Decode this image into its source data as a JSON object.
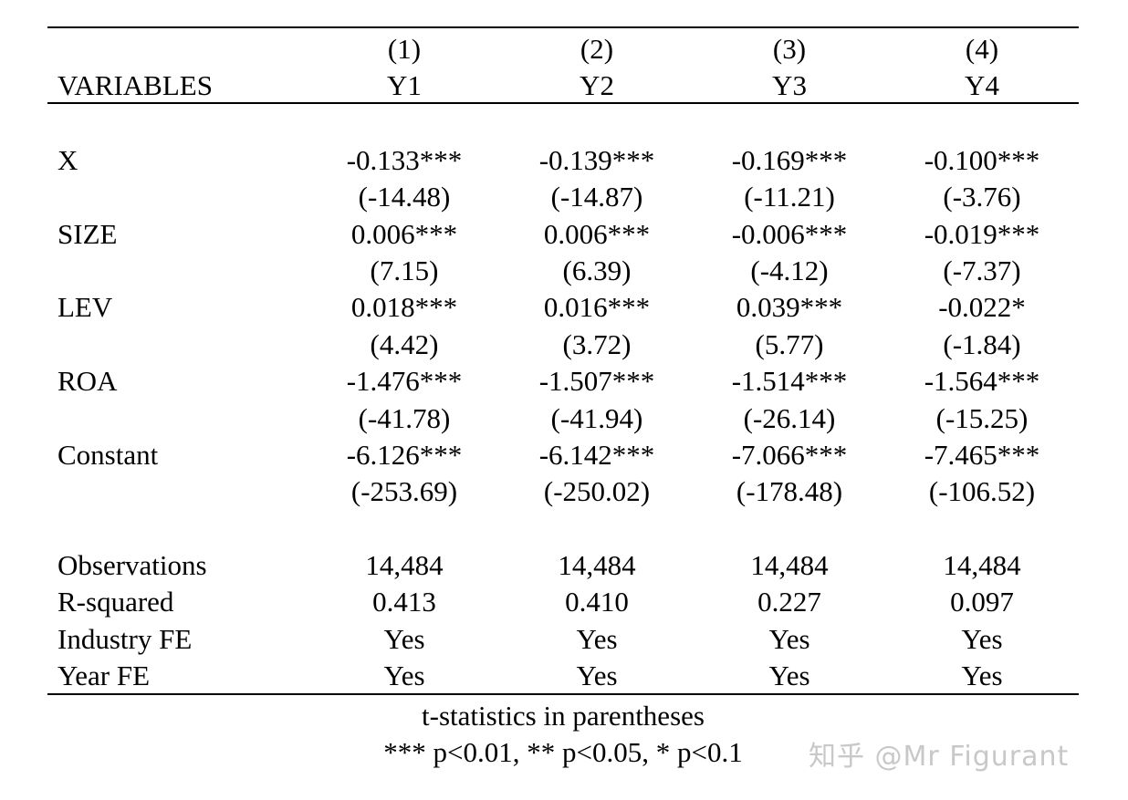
{
  "table": {
    "header": {
      "stub": "VARIABLES",
      "model_numbers": [
        "(1)",
        "(2)",
        "(3)",
        "(4)"
      ],
      "dep_vars": [
        "Y1",
        "Y2",
        "Y3",
        "Y4"
      ]
    },
    "coef_rows": [
      {
        "label": "X",
        "coef": [
          "-0.133***",
          "-0.139***",
          "-0.169***",
          "-0.100***"
        ],
        "tstat": [
          "(-14.48)",
          "(-14.87)",
          "(-11.21)",
          "(-3.76)"
        ]
      },
      {
        "label": "SIZE",
        "coef": [
          "0.006***",
          "0.006***",
          "-0.006***",
          "-0.019***"
        ],
        "tstat": [
          "(7.15)",
          "(6.39)",
          "(-4.12)",
          "(-7.37)"
        ]
      },
      {
        "label": "LEV",
        "coef": [
          "0.018***",
          "0.016***",
          "0.039***",
          "-0.022*"
        ],
        "tstat": [
          "(4.42)",
          "(3.72)",
          "(5.77)",
          "(-1.84)"
        ]
      },
      {
        "label": "ROA",
        "coef": [
          "-1.476***",
          "-1.507***",
          "-1.514***",
          "-1.564***"
        ],
        "tstat": [
          "(-41.78)",
          "(-41.94)",
          "(-26.14)",
          "(-15.25)"
        ]
      },
      {
        "label": "Constant",
        "coef": [
          "-6.126***",
          "-6.142***",
          "-7.066***",
          "-7.465***"
        ],
        "tstat": [
          "(-253.69)",
          "(-250.02)",
          "(-178.48)",
          "(-106.52)"
        ]
      }
    ],
    "stat_rows": [
      {
        "label": "Observations",
        "values": [
          "14,484",
          "14,484",
          "14,484",
          "14,484"
        ]
      },
      {
        "label": "R-squared",
        "values": [
          "0.413",
          "0.410",
          "0.227",
          "0.097"
        ]
      },
      {
        "label": "Industry FE",
        "values": [
          "Yes",
          "Yes",
          "Yes",
          "Yes"
        ]
      },
      {
        "label": "Year FE",
        "values": [
          "Yes",
          "Yes",
          "Yes",
          "Yes"
        ]
      }
    ],
    "notes": [
      "t-statistics in parentheses",
      "*** p<0.01, ** p<0.05, * p<0.1"
    ]
  },
  "watermark": "知乎 @Mr Figurant"
}
